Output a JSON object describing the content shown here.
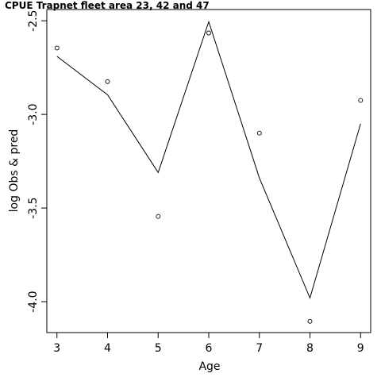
{
  "chart_data": {
    "type": "line",
    "title": "CPUE Trapnet fleet area 23, 42 and 47",
    "xlabel": "Age",
    "ylabel": "log Obs & pred",
    "xlim": [
      2.8,
      9.2
    ],
    "ylim": [
      -4.165,
      -2.44
    ],
    "x_ticks": [
      3,
      4,
      5,
      6,
      7,
      8,
      9
    ],
    "y_ticks": [
      -4.0,
      -3.5,
      -3.0,
      -2.5
    ],
    "y_tick_labels": [
      "-4.0",
      "-3.5",
      "-3.0",
      "-2.5"
    ],
    "x": [
      3,
      4,
      5,
      6,
      7,
      8,
      9
    ],
    "series": [
      {
        "kind": "line",
        "values": [
          -2.69,
          -2.895,
          -3.31,
          -2.505,
          -3.34,
          -3.98,
          -3.05
        ]
      },
      {
        "kind": "points",
        "values": [
          -2.645,
          -2.825,
          -3.545,
          -2.565,
          -3.1,
          -4.105,
          -2.925
        ]
      }
    ],
    "grid": false
  }
}
